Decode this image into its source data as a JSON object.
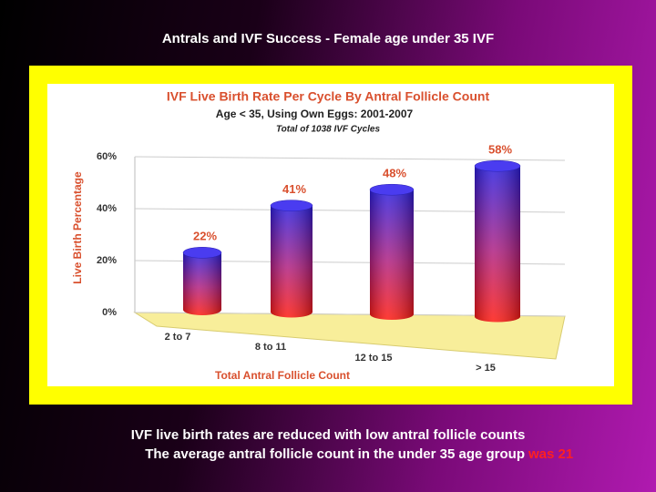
{
  "slide": {
    "title": "Antrals and IVF Success - Female age under 35 IVF",
    "caption_line_1": "IVF live birth rates are reduced with low antral follicle counts",
    "caption_line_2": "The average antral follicle count in the under 35 age group",
    "caption_highlight": "was 21"
  },
  "chart_data": {
    "type": "bar",
    "title": "IVF Live Birth Rate Per Cycle By Antral Follicle Count",
    "subtitle": "Age < 35, Using Own Eggs: 2001-2007",
    "note": "Total of 1038 IVF Cycles",
    "x_label": "Total Antral Follicle Count",
    "y_label": "Live Birth Percentage",
    "categories": [
      "2 to 7",
      "8 to 11",
      "12 to 15",
      "> 15"
    ],
    "values": [
      22,
      41,
      48,
      58
    ],
    "value_labels": [
      "22%",
      "41%",
      "48%",
      "58%"
    ],
    "ylim": [
      0,
      60
    ],
    "yticks": [
      {
        "value": 0,
        "label": "0%"
      },
      {
        "value": 20,
        "label": "20%"
      },
      {
        "value": 40,
        "label": "40%"
      },
      {
        "value": 60,
        "label": "60%"
      }
    ],
    "grid": true,
    "colors": {
      "top": "#2a1ee0",
      "bottom": "#ff1a10"
    }
  }
}
